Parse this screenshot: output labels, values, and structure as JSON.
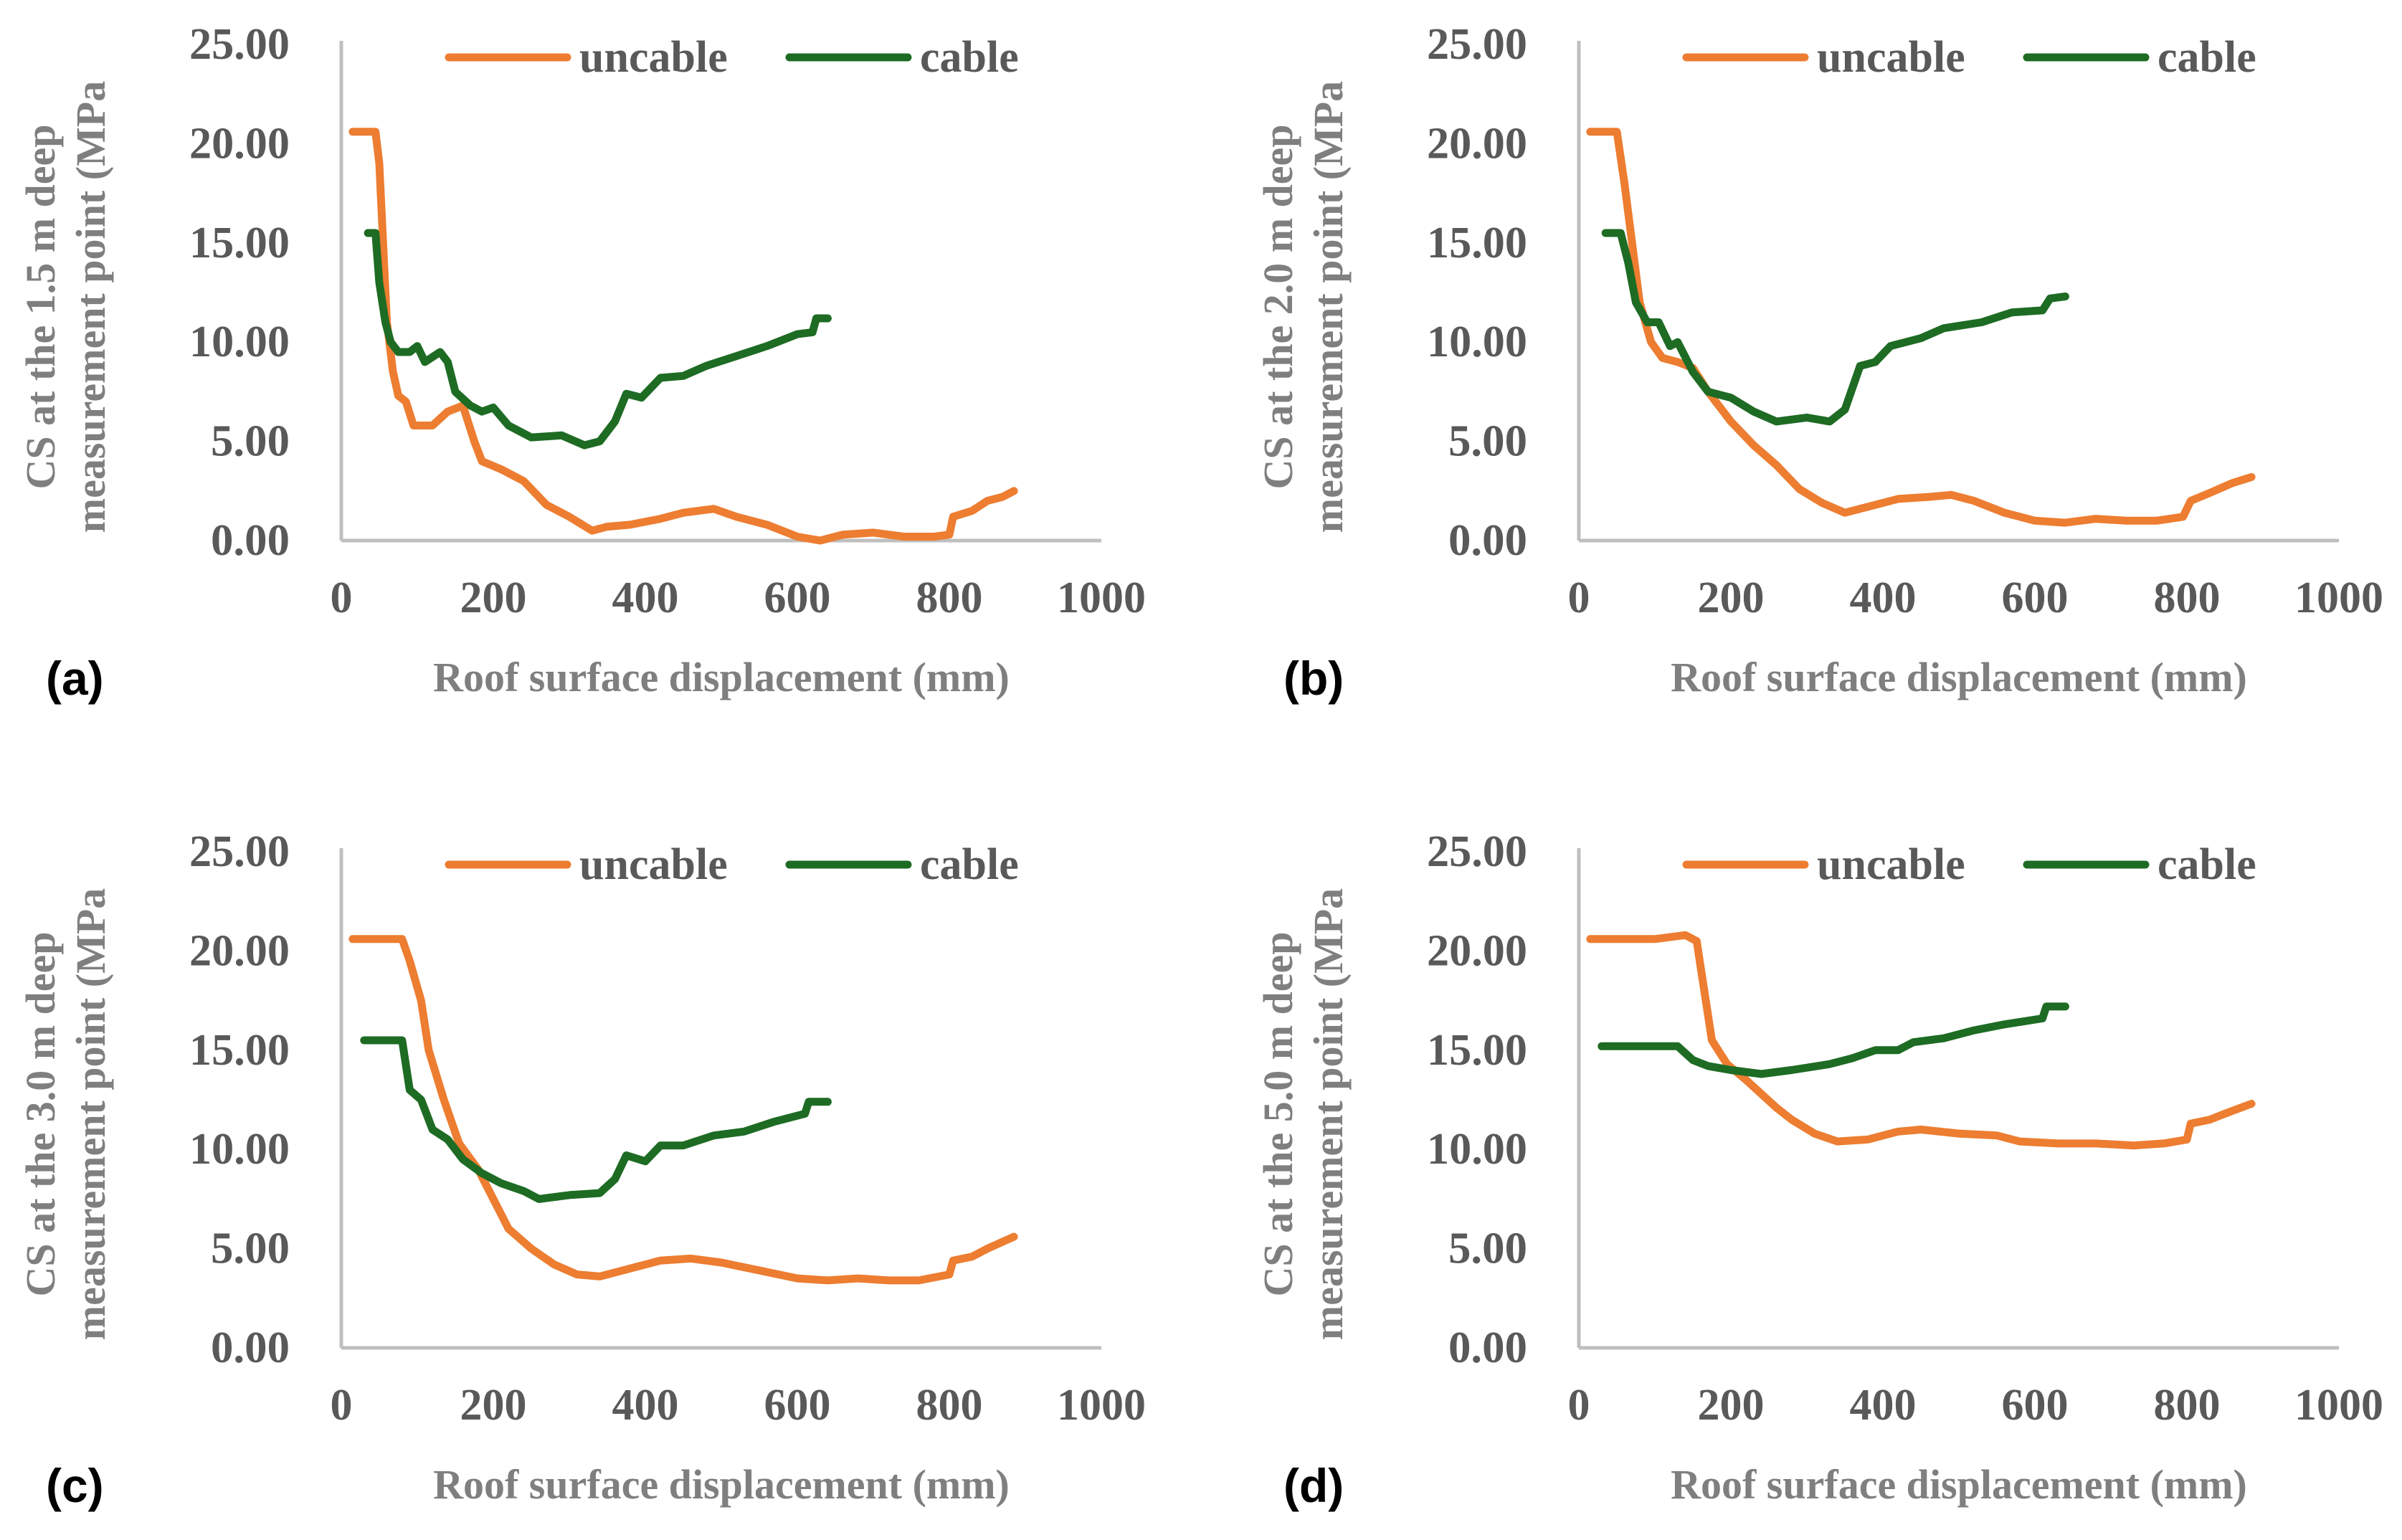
{
  "colors": {
    "uncable": "#ED7D31",
    "cable": "#1E6B24",
    "axis": "#BFBFBF",
    "tick_text": "#595959",
    "title_text": "#7F7F7F"
  },
  "chart_data": [
    {
      "type": "line",
      "panel_label": "(a)",
      "xlabel": "Roof surface displacement (mm)",
      "ylabel": [
        "CS at the 1.5 m deep",
        "measurement point (MPa"
      ],
      "xlim": [
        0,
        1000
      ],
      "ylim": [
        0,
        25
      ],
      "xticks": [
        "0",
        "200",
        "400",
        "600",
        "800",
        "1000"
      ],
      "yticks": [
        "0.00",
        "5.00",
        "10.00",
        "15.00",
        "20.00",
        "25.00"
      ],
      "legend": [
        "uncable",
        "cable"
      ],
      "legend_position": "top",
      "series": [
        {
          "name": "uncable",
          "points": [
            [
              15,
              20.6
            ],
            [
              45,
              20.6
            ],
            [
              50,
              19
            ],
            [
              55,
              15
            ],
            [
              60,
              11
            ],
            [
              68,
              8.5
            ],
            [
              75,
              7.3
            ],
            [
              85,
              7
            ],
            [
              95,
              5.8
            ],
            [
              120,
              5.8
            ],
            [
              140,
              6.5
            ],
            [
              160,
              6.8
            ],
            [
              175,
              5
            ],
            [
              185,
              4
            ],
            [
              210,
              3.6
            ],
            [
              240,
              3
            ],
            [
              270,
              1.8
            ],
            [
              300,
              1.2
            ],
            [
              330,
              0.5
            ],
            [
              350,
              0.7
            ],
            [
              380,
              0.8
            ],
            [
              420,
              1.1
            ],
            [
              450,
              1.4
            ],
            [
              490,
              1.6
            ],
            [
              520,
              1.2
            ],
            [
              560,
              0.8
            ],
            [
              600,
              0.2
            ],
            [
              630,
              0.0
            ],
            [
              660,
              0.3
            ],
            [
              700,
              0.4
            ],
            [
              740,
              0.2
            ],
            [
              780,
              0.2
            ],
            [
              800,
              0.3
            ],
            [
              805,
              1.2
            ],
            [
              830,
              1.5
            ],
            [
              850,
              2
            ],
            [
              870,
              2.2
            ],
            [
              885,
              2.5
            ]
          ]
        },
        {
          "name": "cable",
          "points": [
            [
              35,
              15.5
            ],
            [
              45,
              15.5
            ],
            [
              50,
              13
            ],
            [
              58,
              11
            ],
            [
              65,
              10
            ],
            [
              75,
              9.5
            ],
            [
              90,
              9.5
            ],
            [
              100,
              9.8
            ],
            [
              110,
              9
            ],
            [
              130,
              9.5
            ],
            [
              140,
              9
            ],
            [
              150,
              7.5
            ],
            [
              170,
              6.8
            ],
            [
              185,
              6.5
            ],
            [
              200,
              6.7
            ],
            [
              220,
              5.8
            ],
            [
              250,
              5.2
            ],
            [
              290,
              5.3
            ],
            [
              320,
              4.8
            ],
            [
              340,
              5
            ],
            [
              360,
              6
            ],
            [
              375,
              7.4
            ],
            [
              395,
              7.2
            ],
            [
              420,
              8.2
            ],
            [
              450,
              8.3
            ],
            [
              480,
              8.8
            ],
            [
              520,
              9.3
            ],
            [
              560,
              9.8
            ],
            [
              600,
              10.4
            ],
            [
              620,
              10.5
            ],
            [
              625,
              11.2
            ],
            [
              640,
              11.2
            ]
          ]
        }
      ]
    },
    {
      "type": "line",
      "panel_label": "(b)",
      "xlabel": "Roof surface displacement (mm)",
      "ylabel": [
        "CS at the 2.0 m deep",
        "measurement point (MPa"
      ],
      "xlim": [
        0,
        1000
      ],
      "ylim": [
        0,
        25
      ],
      "xticks": [
        "0",
        "200",
        "400",
        "600",
        "800",
        "1000"
      ],
      "yticks": [
        "0.00",
        "5.00",
        "10.00",
        "15.00",
        "20.00",
        "25.00"
      ],
      "legend": [
        "uncable",
        "cable"
      ],
      "legend_position": "top",
      "series": [
        {
          "name": "uncable",
          "points": [
            [
              15,
              20.6
            ],
            [
              50,
              20.6
            ],
            [
              60,
              18
            ],
            [
              70,
              15
            ],
            [
              80,
              12
            ],
            [
              95,
              10
            ],
            [
              110,
              9.2
            ],
            [
              130,
              9
            ],
            [
              150,
              8.7
            ],
            [
              170,
              7.5
            ],
            [
              200,
              6
            ],
            [
              230,
              4.8
            ],
            [
              260,
              3.8
            ],
            [
              290,
              2.6
            ],
            [
              320,
              1.9
            ],
            [
              350,
              1.4
            ],
            [
              380,
              1.7
            ],
            [
              420,
              2.1
            ],
            [
              460,
              2.2
            ],
            [
              490,
              2.3
            ],
            [
              520,
              2
            ],
            [
              560,
              1.4
            ],
            [
              600,
              1.0
            ],
            [
              640,
              0.9
            ],
            [
              680,
              1.1
            ],
            [
              720,
              1
            ],
            [
              760,
              1
            ],
            [
              795,
              1.2
            ],
            [
              805,
              2
            ],
            [
              830,
              2.4
            ],
            [
              860,
              2.9
            ],
            [
              885,
              3.2
            ]
          ]
        },
        {
          "name": "cable",
          "points": [
            [
              35,
              15.5
            ],
            [
              55,
              15.5
            ],
            [
              65,
              14
            ],
            [
              75,
              12
            ],
            [
              90,
              11
            ],
            [
              105,
              11
            ],
            [
              120,
              9.8
            ],
            [
              130,
              10
            ],
            [
              150,
              8.5
            ],
            [
              170,
              7.5
            ],
            [
              200,
              7.2
            ],
            [
              230,
              6.5
            ],
            [
              260,
              6
            ],
            [
              300,
              6.2
            ],
            [
              330,
              6
            ],
            [
              350,
              6.6
            ],
            [
              370,
              8.8
            ],
            [
              390,
              9
            ],
            [
              410,
              9.8
            ],
            [
              450,
              10.2
            ],
            [
              480,
              10.7
            ],
            [
              530,
              11
            ],
            [
              570,
              11.5
            ],
            [
              610,
              11.6
            ],
            [
              620,
              12.2
            ],
            [
              640,
              12.3
            ]
          ]
        }
      ]
    },
    {
      "type": "line",
      "panel_label": "(c)",
      "xlabel": "Roof surface displacement (mm)",
      "ylabel": [
        "CS at the 3.0 m deep",
        "measurement point (MPa"
      ],
      "xlim": [
        0,
        1000
      ],
      "ylim": [
        0,
        25
      ],
      "xticks": [
        "0",
        "200",
        "400",
        "600",
        "800",
        "1000"
      ],
      "yticks": [
        "0.00",
        "5.00",
        "10.00",
        "15.00",
        "20.00",
        "25.00"
      ],
      "legend": [
        "uncable",
        "cable"
      ],
      "legend_position": "top",
      "series": [
        {
          "name": "uncable",
          "points": [
            [
              15,
              20.6
            ],
            [
              80,
              20.6
            ],
            [
              90,
              19.5
            ],
            [
              105,
              17.5
            ],
            [
              115,
              15
            ],
            [
              135,
              12.5
            ],
            [
              155,
              10.3
            ],
            [
              180,
              9
            ],
            [
              200,
              7.5
            ],
            [
              220,
              6
            ],
            [
              250,
              5
            ],
            [
              280,
              4.2
            ],
            [
              310,
              3.7
            ],
            [
              340,
              3.6
            ],
            [
              380,
              4
            ],
            [
              420,
              4.4
            ],
            [
              460,
              4.5
            ],
            [
              500,
              4.3
            ],
            [
              550,
              3.9
            ],
            [
              600,
              3.5
            ],
            [
              640,
              3.4
            ],
            [
              680,
              3.5
            ],
            [
              720,
              3.4
            ],
            [
              760,
              3.4
            ],
            [
              800,
              3.7
            ],
            [
              805,
              4.4
            ],
            [
              830,
              4.6
            ],
            [
              850,
              5
            ],
            [
              885,
              5.6
            ]
          ]
        },
        {
          "name": "cable",
          "points": [
            [
              30,
              15.5
            ],
            [
              80,
              15.5
            ],
            [
              90,
              13
            ],
            [
              105,
              12.5
            ],
            [
              120,
              11
            ],
            [
              140,
              10.5
            ],
            [
              160,
              9.5
            ],
            [
              185,
              8.8
            ],
            [
              210,
              8.3
            ],
            [
              240,
              7.9
            ],
            [
              260,
              7.5
            ],
            [
              300,
              7.7
            ],
            [
              340,
              7.8
            ],
            [
              360,
              8.5
            ],
            [
              375,
              9.7
            ],
            [
              400,
              9.4
            ],
            [
              420,
              10.2
            ],
            [
              450,
              10.2
            ],
            [
              490,
              10.7
            ],
            [
              530,
              10.9
            ],
            [
              570,
              11.4
            ],
            [
              610,
              11.8
            ],
            [
              615,
              12.4
            ],
            [
              640,
              12.4
            ]
          ]
        }
      ]
    },
    {
      "type": "line",
      "panel_label": "(d)",
      "xlabel": "Roof surface displacement (mm)",
      "ylabel": [
        "CS at the 5.0 m deep",
        "measurement point (MPa"
      ],
      "xlim": [
        0,
        1000
      ],
      "ylim": [
        0,
        25
      ],
      "xticks": [
        "0",
        "200",
        "400",
        "600",
        "800",
        "1000"
      ],
      "yticks": [
        "0.00",
        "5.00",
        "10.00",
        "15.00",
        "20.00",
        "25.00"
      ],
      "legend": [
        "uncable",
        "cable"
      ],
      "legend_position": "top",
      "series": [
        {
          "name": "uncable",
          "points": [
            [
              15,
              20.6
            ],
            [
              100,
              20.6
            ],
            [
              140,
              20.8
            ],
            [
              155,
              20.5
            ],
            [
              165,
              18
            ],
            [
              175,
              15.5
            ],
            [
              195,
              14.3
            ],
            [
              220,
              13.5
            ],
            [
              260,
              12.1
            ],
            [
              280,
              11.5
            ],
            [
              310,
              10.8
            ],
            [
              340,
              10.4
            ],
            [
              380,
              10.5
            ],
            [
              420,
              10.9
            ],
            [
              450,
              11
            ],
            [
              500,
              10.8
            ],
            [
              550,
              10.7
            ],
            [
              580,
              10.4
            ],
            [
              630,
              10.3
            ],
            [
              680,
              10.3
            ],
            [
              730,
              10.2
            ],
            [
              770,
              10.3
            ],
            [
              800,
              10.5
            ],
            [
              805,
              11.3
            ],
            [
              830,
              11.5
            ],
            [
              850,
              11.8
            ],
            [
              885,
              12.3
            ]
          ]
        },
        {
          "name": "cable",
          "points": [
            [
              30,
              15.2
            ],
            [
              130,
              15.2
            ],
            [
              150,
              14.5
            ],
            [
              170,
              14.2
            ],
            [
              200,
              14
            ],
            [
              240,
              13.8
            ],
            [
              280,
              14
            ],
            [
              330,
              14.3
            ],
            [
              360,
              14.6
            ],
            [
              390,
              15
            ],
            [
              420,
              15
            ],
            [
              440,
              15.4
            ],
            [
              480,
              15.6
            ],
            [
              520,
              16
            ],
            [
              560,
              16.3
            ],
            [
              610,
              16.6
            ],
            [
              615,
              17.2
            ],
            [
              640,
              17.2
            ]
          ]
        }
      ]
    }
  ]
}
